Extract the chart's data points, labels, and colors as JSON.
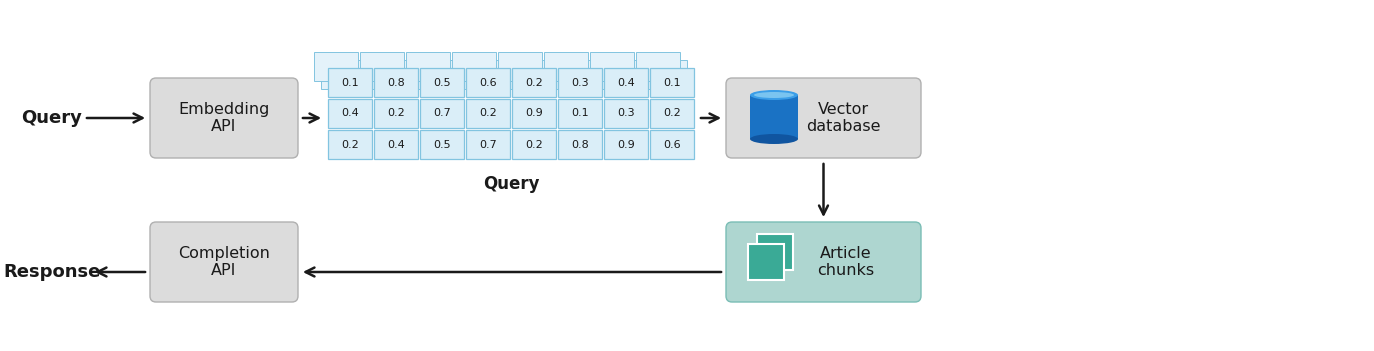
{
  "bg_color": "#ffffff",
  "box_gray_color": "#dcdcdc",
  "box_teal_color": "#aed6d0",
  "cell_fill": "#daeef8",
  "cell_border": "#82c4e0",
  "arrow_color": "#1a1a1a",
  "text_color": "#1a1a1a",
  "query_label": "Query",
  "response_label": "Response",
  "embed_label": "Embedding\nAPI",
  "vector_label": "Vector\ndatabase",
  "completion_label": "Completion\nAPI",
  "article_label": "Article\nchunks",
  "vector_query_label": "Query",
  "rows": [
    [
      "0.1",
      "0.8",
      "0.5",
      "0.6",
      "0.2",
      "0.3",
      "0.4",
      "0.1"
    ],
    [
      "0.4",
      "0.2",
      "0.7",
      "0.2",
      "0.9",
      "0.1",
      "0.3",
      "0.2"
    ],
    [
      "0.2",
      "0.4",
      "0.5",
      "0.7",
      "0.2",
      "0.8",
      "0.9",
      "0.6"
    ]
  ],
  "figw": 13.74,
  "figh": 3.51,
  "dpi": 100
}
